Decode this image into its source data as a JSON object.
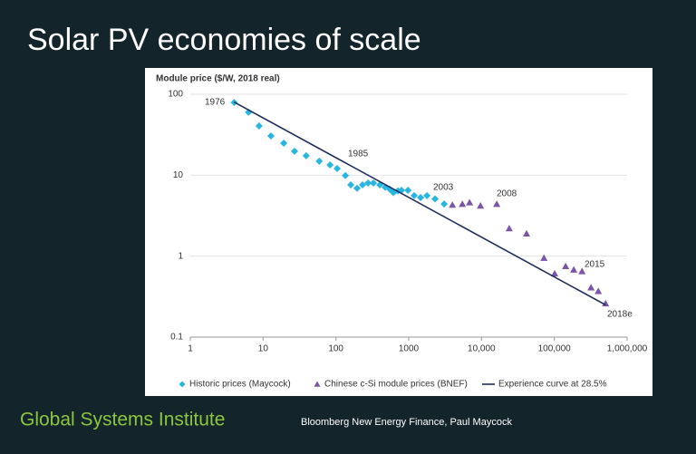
{
  "chart_data": {
    "type": "scatter",
    "title": "Solar PV economies of scale",
    "ylabel": "Module price ($/W, 2018 real)",
    "xlim": [
      1,
      1000000
    ],
    "ylim": [
      0.1,
      100
    ],
    "log_x": true,
    "log_y": true,
    "grid": true,
    "xticks": [
      1,
      10,
      100,
      1000,
      {
        "value": 10000,
        "label": "10,000"
      },
      {
        "value": 100000,
        "label": "100,000"
      },
      {
        "value": 1000000,
        "label": "1,000,000"
      }
    ],
    "yticks": [
      0.1,
      1,
      10,
      100
    ],
    "series": [
      {
        "name": "Historic prices (Maycock)",
        "color": "#29b5e2",
        "marker": "diamond",
        "x": [
          4,
          6.3,
          8.8,
          12.8,
          19.2,
          27,
          39,
          59,
          83,
          104,
          135,
          160,
          195,
          232,
          276,
          328,
          401,
          476,
          550,
          617,
          711,
          795,
          977,
          1190,
          1455,
          1780,
          2300,
          3070
        ],
        "values": [
          79,
          60,
          40.6,
          30.6,
          24.9,
          19.8,
          17.4,
          14.9,
          13.4,
          12.1,
          9.9,
          7.6,
          6.9,
          7.6,
          8.0,
          8.0,
          7.6,
          7.1,
          6.7,
          6.1,
          6.4,
          6.5,
          6.5,
          5.6,
          5.3,
          5.6,
          5.1,
          4.4
        ]
      },
      {
        "name": "Chinese c-Si module prices (BNEF)",
        "color": "#7b55a8",
        "marker": "triangle",
        "x": [
          3980,
          5450,
          6850,
          9670,
          16200,
          24000,
          41500,
          72000,
          101000,
          143000,
          185000,
          240000,
          319000,
          402000,
          506000
        ],
        "values": [
          4.3,
          4.4,
          4.6,
          4.2,
          4.4,
          2.2,
          1.9,
          0.95,
          0.61,
          0.75,
          0.68,
          0.65,
          0.41,
          0.37,
          0.26
        ]
      },
      {
        "name": "Experience curve at 28.5%",
        "color": "#1f2d5e",
        "marker": "line",
        "x": [
          4,
          506000
        ],
        "values": [
          80,
          0.25
        ]
      }
    ],
    "annotations": [
      "1976",
      "1985",
      "2003",
      "2008",
      "2015",
      "2018e"
    ]
  },
  "footer": {
    "left": "Global Systems Institute",
    "right": "Bloomberg New Energy Finance, Paul Maycock"
  }
}
